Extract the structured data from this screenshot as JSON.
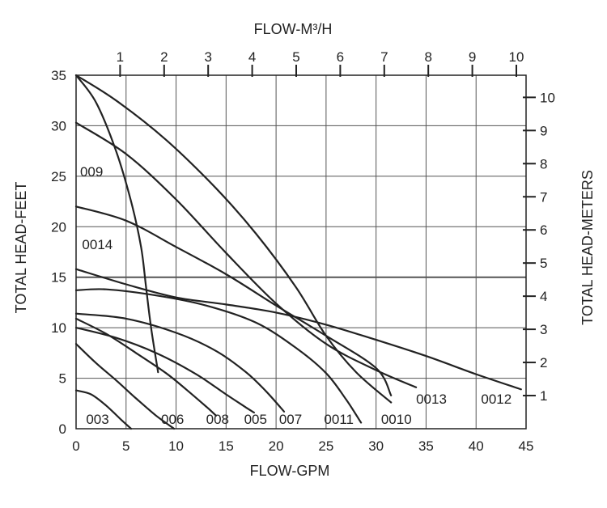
{
  "chart_data": {
    "type": "line",
    "xlabel": "FLOW-GPM",
    "ylabel": "TOTAL HEAD-FEET",
    "x2label": "FLOW-M³/H",
    "y2label": "TOTAL HEAD-METERS",
    "xlim": [
      0,
      45
    ],
    "ylim": [
      0,
      35
    ],
    "x_ticks": [
      0,
      5,
      10,
      15,
      20,
      25,
      30,
      35,
      40,
      45
    ],
    "y_ticks": [
      0,
      5,
      10,
      15,
      20,
      25,
      30,
      35
    ],
    "x2_ticks": [
      1,
      2,
      3,
      4,
      5,
      6,
      7,
      8,
      9,
      10
    ],
    "y2_ticks": [
      1,
      2,
      3,
      4,
      5,
      6,
      7,
      8,
      9,
      10
    ],
    "grid": true,
    "colors": {
      "line": "#222222",
      "grid": "#555555",
      "background": "#ffffff"
    },
    "series": [
      {
        "name": "003",
        "points": [
          [
            0,
            3.8
          ],
          [
            1.5,
            3.4
          ],
          [
            3,
            2.3
          ],
          [
            4.5,
            0.9
          ],
          [
            5.5,
            0
          ]
        ]
      },
      {
        "name": "006",
        "points": [
          [
            0,
            8.4
          ],
          [
            2,
            6.5
          ],
          [
            4,
            4.8
          ],
          [
            6,
            3.0
          ],
          [
            8,
            1.3
          ],
          [
            9.8,
            0
          ]
        ]
      },
      {
        "name": "008",
        "points": [
          [
            0,
            10.9
          ],
          [
            3,
            9.4
          ],
          [
            6,
            7.5
          ],
          [
            9,
            5.5
          ],
          [
            11,
            3.9
          ],
          [
            13,
            2.2
          ],
          [
            14,
            1.3
          ]
        ]
      },
      {
        "name": "005",
        "points": [
          [
            0,
            10.0
          ],
          [
            4,
            9.0
          ],
          [
            8,
            7.5
          ],
          [
            12,
            5.4
          ],
          [
            15,
            3.4
          ],
          [
            17,
            2.1
          ],
          [
            17.8,
            1.6
          ]
        ]
      },
      {
        "name": "007",
        "points": [
          [
            0,
            11.4
          ],
          [
            5,
            10.9
          ],
          [
            10,
            9.5
          ],
          [
            14,
            7.7
          ],
          [
            17,
            5.6
          ],
          [
            19,
            3.7
          ],
          [
            20.8,
            1.7
          ]
        ]
      },
      {
        "name": "0011",
        "points": [
          [
            0,
            13.7
          ],
          [
            3,
            13.8
          ],
          [
            8,
            13.2
          ],
          [
            13,
            12.2
          ],
          [
            18,
            10.5
          ],
          [
            22,
            8.0
          ],
          [
            25,
            5.5
          ],
          [
            27,
            2.9
          ],
          [
            28.5,
            0.6
          ]
        ]
      },
      {
        "name": "0010",
        "points": [
          [
            0,
            35
          ],
          [
            4,
            32.5
          ],
          [
            9,
            28.6
          ],
          [
            14,
            23.8
          ],
          [
            18,
            19.3
          ],
          [
            22,
            14.0
          ],
          [
            25,
            9.2
          ],
          [
            28,
            5.6
          ],
          [
            31.5,
            2.6
          ]
        ]
      },
      {
        "name": "0013",
        "points": [
          [
            0,
            30.3
          ],
          [
            5,
            27.2
          ],
          [
            10,
            22.7
          ],
          [
            15,
            17.4
          ],
          [
            20,
            12.4
          ],
          [
            25,
            8.4
          ],
          [
            30,
            5.8
          ],
          [
            34,
            4.1
          ]
        ]
      },
      {
        "name": "0014",
        "points": [
          [
            0,
            22.0
          ],
          [
            5,
            20.6
          ],
          [
            10,
            18.0
          ],
          [
            15,
            15.3
          ],
          [
            20,
            12.2
          ],
          [
            25,
            9.2
          ],
          [
            30,
            6.0
          ],
          [
            31.5,
            3.3
          ]
        ]
      },
      {
        "name": "0012",
        "points": [
          [
            0,
            15.8
          ],
          [
            5,
            14.3
          ],
          [
            10,
            13.0
          ],
          [
            15,
            12.3
          ],
          [
            20,
            11.5
          ],
          [
            25,
            10.3
          ],
          [
            30,
            8.8
          ],
          [
            35,
            7.2
          ],
          [
            40,
            5.4
          ],
          [
            44.5,
            3.9
          ]
        ]
      },
      {
        "name": "009",
        "points": [
          [
            0,
            35
          ],
          [
            2,
            32.3
          ],
          [
            4,
            27.5
          ],
          [
            5.5,
            22.5
          ],
          [
            6.5,
            18.0
          ],
          [
            7,
            14.0
          ],
          [
            7.5,
            10.0
          ],
          [
            8.2,
            5.6
          ]
        ]
      }
    ],
    "labels": [
      {
        "text": "003",
        "x": 1.0,
        "y": 0.5
      },
      {
        "text": "006",
        "x": 8.5,
        "y": 0.5
      },
      {
        "text": "008",
        "x": 13.0,
        "y": 0.5
      },
      {
        "text": "005",
        "x": 16.8,
        "y": 0.5
      },
      {
        "text": "007",
        "x": 20.3,
        "y": 0.5
      },
      {
        "text": "0011",
        "x": 24.8,
        "y": 0.5
      },
      {
        "text": "0010",
        "x": 30.5,
        "y": 0.5
      },
      {
        "text": "0013",
        "x": 34.0,
        "y": 2.5
      },
      {
        "text": "0012",
        "x": 40.5,
        "y": 2.5
      },
      {
        "text": "009",
        "x": 0.4,
        "y": 25.0
      },
      {
        "text": "0014",
        "x": 0.6,
        "y": 17.8
      }
    ]
  }
}
